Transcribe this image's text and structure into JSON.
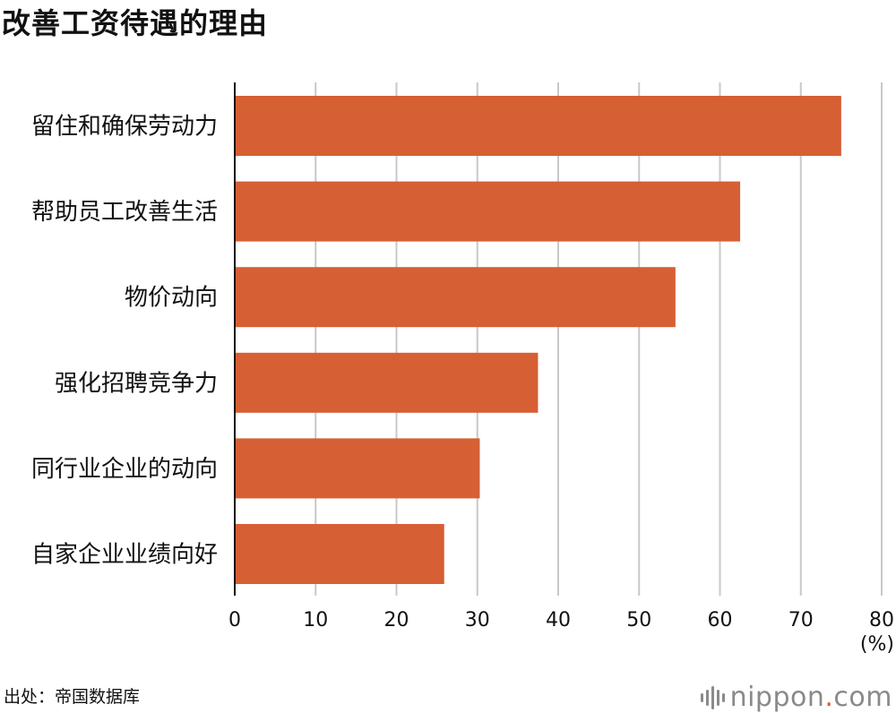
{
  "header": {
    "title": "改善工资待遇的理由"
  },
  "footer": {
    "source": "出处：帝国数据库",
    "logo_main": "nippon",
    "logo_dot": ".",
    "logo_tld": "com"
  },
  "colors": {
    "bar": "#d65f34",
    "grid": "#c8c8c8",
    "axis": "#111111",
    "logo": "#8a8a8a"
  },
  "chart_data": {
    "type": "bar",
    "orientation": "horizontal",
    "title": "改善工资待遇的理由",
    "xlabel": "(%)",
    "ylabel": "",
    "categories": [
      "留住和确保劳动力",
      "帮助员工改善生活",
      "物价动向",
      "强化招聘竞争力",
      "同行业企业的动向",
      "自家企业业绩向好"
    ],
    "values": [
      75.0,
      62.5,
      54.5,
      37.5,
      30.3,
      25.9
    ],
    "xlim": [
      0,
      80
    ],
    "xticks": [
      0,
      10,
      20,
      30,
      40,
      50,
      60,
      70,
      80
    ],
    "grid": true
  }
}
